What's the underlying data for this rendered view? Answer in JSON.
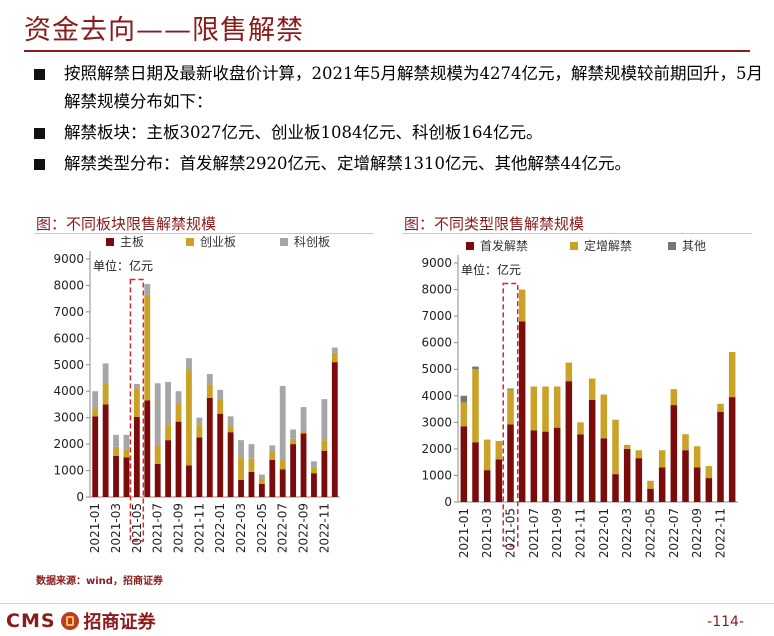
{
  "page": {
    "title": "资金去向——限售解禁",
    "bullets": [
      "按照解禁日期及最新收盘价计算，2021年5月解禁规模为4274亿元，解禁规模较前期回升，5月解禁规模分布如下：",
      "解禁板块：主板3027亿元、创业板1084亿元、科创板164亿元。",
      "解禁类型分布：首发解禁2920亿元、定增解禁1310亿元、其他解禁44亿元。"
    ],
    "source": "数据来源：wind，招商证券",
    "logo_text": "CMS",
    "logo_cn": "招商证券",
    "page_number": "-114-"
  },
  "colors": {
    "series1": "#7b0c0c",
    "series2": "#c9a227",
    "series3_chart1": "#a6a6a6",
    "series3_chart2": "#767676",
    "highlight": "#d9262b",
    "accent": "#8b1a1a"
  },
  "chart_data": [
    {
      "type": "bar",
      "stacked": true,
      "title": "图：不同板块限售解禁规模",
      "unit_label": "单位：亿元",
      "ylim": [
        0,
        9000
      ],
      "yticks": [
        0,
        1000,
        2000,
        3000,
        4000,
        5000,
        6000,
        7000,
        8000,
        9000
      ],
      "legend_position": "top",
      "categories": [
        "2021-01",
        "2021-02",
        "2021-03",
        "2021-04",
        "2021-05",
        "2021-06",
        "2021-07",
        "2021-08",
        "2021-09",
        "2021-10",
        "2021-11",
        "2021-12",
        "2022-01",
        "2022-02",
        "2022-03",
        "2022-04",
        "2022-05",
        "2022-06",
        "2022-07",
        "2022-08",
        "2022-09",
        "2022-10",
        "2022-11",
        "2022-12"
      ],
      "xtick_labels": [
        "2021-01",
        "2021-03",
        "2021-05",
        "2021-07",
        "2021-09",
        "2021-11",
        "2022-01",
        "2022-03",
        "2022-05",
        "2022-07",
        "2022-09",
        "2022-11"
      ],
      "highlight_category": "2021-05",
      "series": [
        {
          "name": "主板",
          "values": [
            3050,
            3500,
            1550,
            1500,
            3027,
            3650,
            1250,
            2150,
            2850,
            1200,
            2250,
            3750,
            3150,
            2450,
            650,
            950,
            500,
            1400,
            1050,
            2000,
            2400,
            900,
            1750,
            5100
          ]
        },
        {
          "name": "创业板",
          "values": [
            300,
            800,
            350,
            300,
            1084,
            4000,
            700,
            600,
            700,
            3600,
            500,
            500,
            550,
            250,
            850,
            500,
            200,
            300,
            350,
            200,
            100,
            200,
            400,
            350
          ]
        },
        {
          "name": "科创板",
          "values": [
            650,
            750,
            450,
            550,
            164,
            400,
            2350,
            1600,
            450,
            450,
            250,
            400,
            350,
            350,
            650,
            550,
            150,
            250,
            2800,
            350,
            900,
            250,
            1550,
            200
          ]
        }
      ]
    },
    {
      "type": "bar",
      "stacked": true,
      "title": "图：不同类型限售解禁规模",
      "unit_label": "单位：亿元",
      "ylim": [
        0,
        9000
      ],
      "yticks": [
        0,
        1000,
        2000,
        3000,
        4000,
        5000,
        6000,
        7000,
        8000,
        9000
      ],
      "legend_position": "top",
      "categories": [
        "2021-01",
        "2021-02",
        "2021-03",
        "2021-04",
        "2021-05",
        "2021-06",
        "2021-07",
        "2021-08",
        "2021-09",
        "2021-10",
        "2021-11",
        "2021-12",
        "2022-01",
        "2022-02",
        "2022-03",
        "2022-04",
        "2022-05",
        "2022-06",
        "2022-07",
        "2022-08",
        "2022-09",
        "2022-10",
        "2022-11",
        "2022-12"
      ],
      "xtick_labels": [
        "2021-01",
        "2021-03",
        "2021-05",
        "2021-07",
        "2021-09",
        "2021-11",
        "2022-01",
        "2022-03",
        "2022-05",
        "2022-07",
        "2022-09",
        "2022-11"
      ],
      "highlight_category": "2021-05",
      "series": [
        {
          "name": "首发解禁",
          "values": [
            2850,
            2250,
            1200,
            1600,
            2920,
            6800,
            2700,
            2650,
            2800,
            4550,
            2550,
            3850,
            2400,
            1050,
            2000,
            1650,
            500,
            1300,
            3650,
            1950,
            1300,
            900,
            3400,
            3950
          ]
        },
        {
          "name": "定增解禁",
          "values": [
            900,
            2750,
            1150,
            700,
            1310,
            1200,
            1650,
            1700,
            1550,
            700,
            450,
            800,
            1650,
            2050,
            150,
            300,
            300,
            650,
            600,
            600,
            800,
            450,
            300,
            1700
          ]
        },
        {
          "name": "其他",
          "values": [
            250,
            100,
            0,
            0,
            44,
            0,
            0,
            0,
            0,
            0,
            0,
            0,
            0,
            0,
            0,
            0,
            0,
            0,
            0,
            0,
            0,
            0,
            0,
            0
          ]
        }
      ]
    }
  ]
}
